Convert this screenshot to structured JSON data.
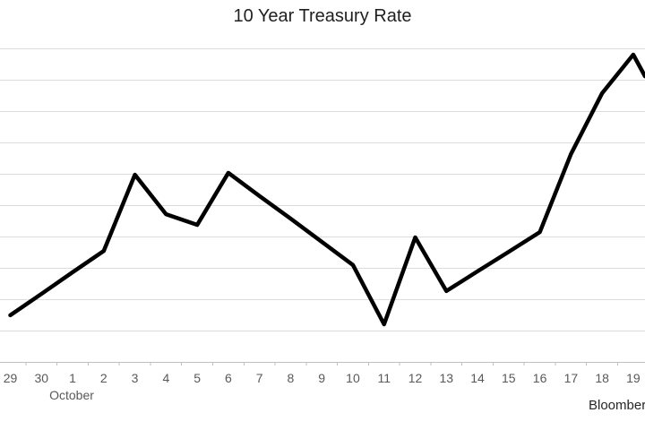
{
  "chart_data": {
    "type": "line",
    "title": "10 Year Treasury Rate",
    "x_categories": [
      "29",
      "30",
      "1",
      "2",
      "3",
      "4",
      "5",
      "6",
      "7",
      "8",
      "9",
      "10",
      "11",
      "12",
      "13",
      "14",
      "15",
      "16",
      "17",
      "18",
      "19"
    ],
    "month_label": "October",
    "source_label": "Bloomberg",
    "legend": "none",
    "grid": "horizontal gridlines only",
    "y_axis": {
      "tick_labels_visible": false,
      "note": "y-axis scale labels are cropped out of the left edge of the image",
      "ylim_gridline_units": [
        0,
        10
      ],
      "gridline_count": 11
    },
    "series": [
      {
        "name": "10 Year Treasury Rate",
        "values_unit": "gridline units above the x-axis (absolute scale not visible)",
        "values": [
          1.49,
          2.17,
          2.86,
          3.54,
          5.97,
          4.71,
          4.37,
          6.03,
          5.29,
          4.57,
          3.83,
          3.09,
          1.2,
          3.97,
          2.26,
          2.89,
          3.51,
          4.14,
          6.63,
          8.57,
          9.8
        ]
      }
    ],
    "right_edge_continuation": {
      "value": 9.11,
      "note": "line continues downward past Oct 19 and is cropped at the right edge"
    },
    "colors": {
      "line": "#000000",
      "gridline": "#dcdcdc",
      "axis_line": "#bfbfbf",
      "axis_label": "#595959",
      "title": "#1f1f1f",
      "source_text": "#262626"
    }
  }
}
